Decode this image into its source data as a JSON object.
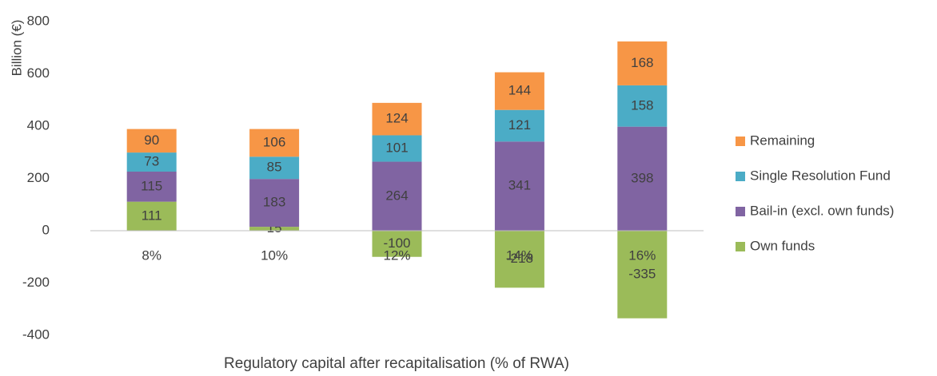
{
  "chart_data": {
    "type": "stacked_bar",
    "x_label": "Regulatory capital after recapitalisation (% of RWA)",
    "y_label": "Billion (€)",
    "categories": [
      "8%",
      "10%",
      "12%",
      "14%",
      "16%"
    ],
    "series": [
      {
        "name": "Own funds",
        "color": "#9bbb59",
        "values": [
          111,
          15,
          -100,
          -218,
          -335
        ]
      },
      {
        "name": "Bail-in (excl. own funds)",
        "color": "#8064a2",
        "values": [
          115,
          183,
          264,
          341,
          398
        ]
      },
      {
        "name": "Single Resolution Fund",
        "color": "#4bacc6",
        "values": [
          73,
          85,
          101,
          121,
          158
        ]
      },
      {
        "name": "Remaining",
        "color": "#f79646",
        "values": [
          90,
          106,
          124,
          144,
          168
        ]
      }
    ],
    "ylim": [
      -400,
      800
    ],
    "yticks": [
      -400,
      -200,
      0,
      200,
      400,
      600,
      800
    ],
    "grid": false,
    "legend": "right"
  }
}
